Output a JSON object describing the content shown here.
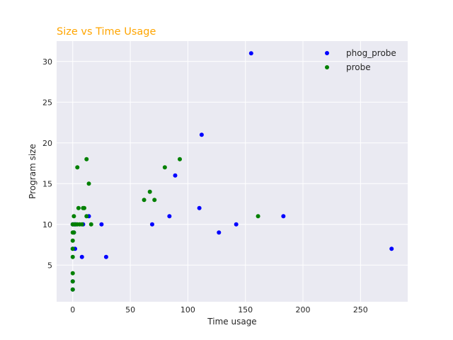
{
  "chart_data": {
    "type": "scatter",
    "title": "Size vs Time Usage",
    "title_color": "#ffa500",
    "xlabel": "Time usage",
    "ylabel": "Program size",
    "xlim": [
      -14,
      291
    ],
    "ylim": [
      0.5,
      32.5
    ],
    "xticks": [
      0,
      50,
      100,
      150,
      200,
      250
    ],
    "yticks": [
      5,
      10,
      15,
      20,
      25,
      30
    ],
    "grid": true,
    "background": "#eaeaf2",
    "legend_position": "top-right",
    "series": [
      {
        "name": "phog_probe",
        "color": "#0000ff",
        "points": [
          [
            155,
            31
          ],
          [
            112,
            21
          ],
          [
            89,
            16
          ],
          [
            110,
            12
          ],
          [
            84,
            11
          ],
          [
            183,
            11
          ],
          [
            69,
            10
          ],
          [
            142,
            10
          ],
          [
            127,
            9
          ],
          [
            277,
            7
          ],
          [
            25,
            10
          ],
          [
            29,
            6
          ],
          [
            14,
            11
          ],
          [
            9,
            10
          ],
          [
            8,
            6
          ],
          [
            0,
            10
          ],
          [
            1,
            10
          ],
          [
            2,
            10
          ],
          [
            3,
            10
          ],
          [
            1,
            9
          ],
          [
            2,
            7
          ],
          [
            0,
            7
          ],
          [
            0,
            3
          ],
          [
            0,
            2
          ]
        ]
      },
      {
        "name": "probe",
        "color": "#008000",
        "points": [
          [
            93,
            18
          ],
          [
            80,
            17
          ],
          [
            67,
            14
          ],
          [
            62,
            13
          ],
          [
            71,
            13
          ],
          [
            161,
            11
          ],
          [
            12,
            18
          ],
          [
            4,
            17
          ],
          [
            14,
            15
          ],
          [
            5,
            12
          ],
          [
            9,
            12
          ],
          [
            10,
            12
          ],
          [
            1,
            11
          ],
          [
            12,
            11
          ],
          [
            16,
            10
          ],
          [
            0,
            10
          ],
          [
            2,
            10
          ],
          [
            4,
            10
          ],
          [
            6,
            10
          ],
          [
            8,
            10
          ],
          [
            0,
            9
          ],
          [
            1,
            9
          ],
          [
            0,
            8
          ],
          [
            0,
            7
          ],
          [
            0,
            6
          ],
          [
            0,
            4
          ],
          [
            0,
            3
          ],
          [
            0,
            2
          ]
        ]
      }
    ]
  }
}
